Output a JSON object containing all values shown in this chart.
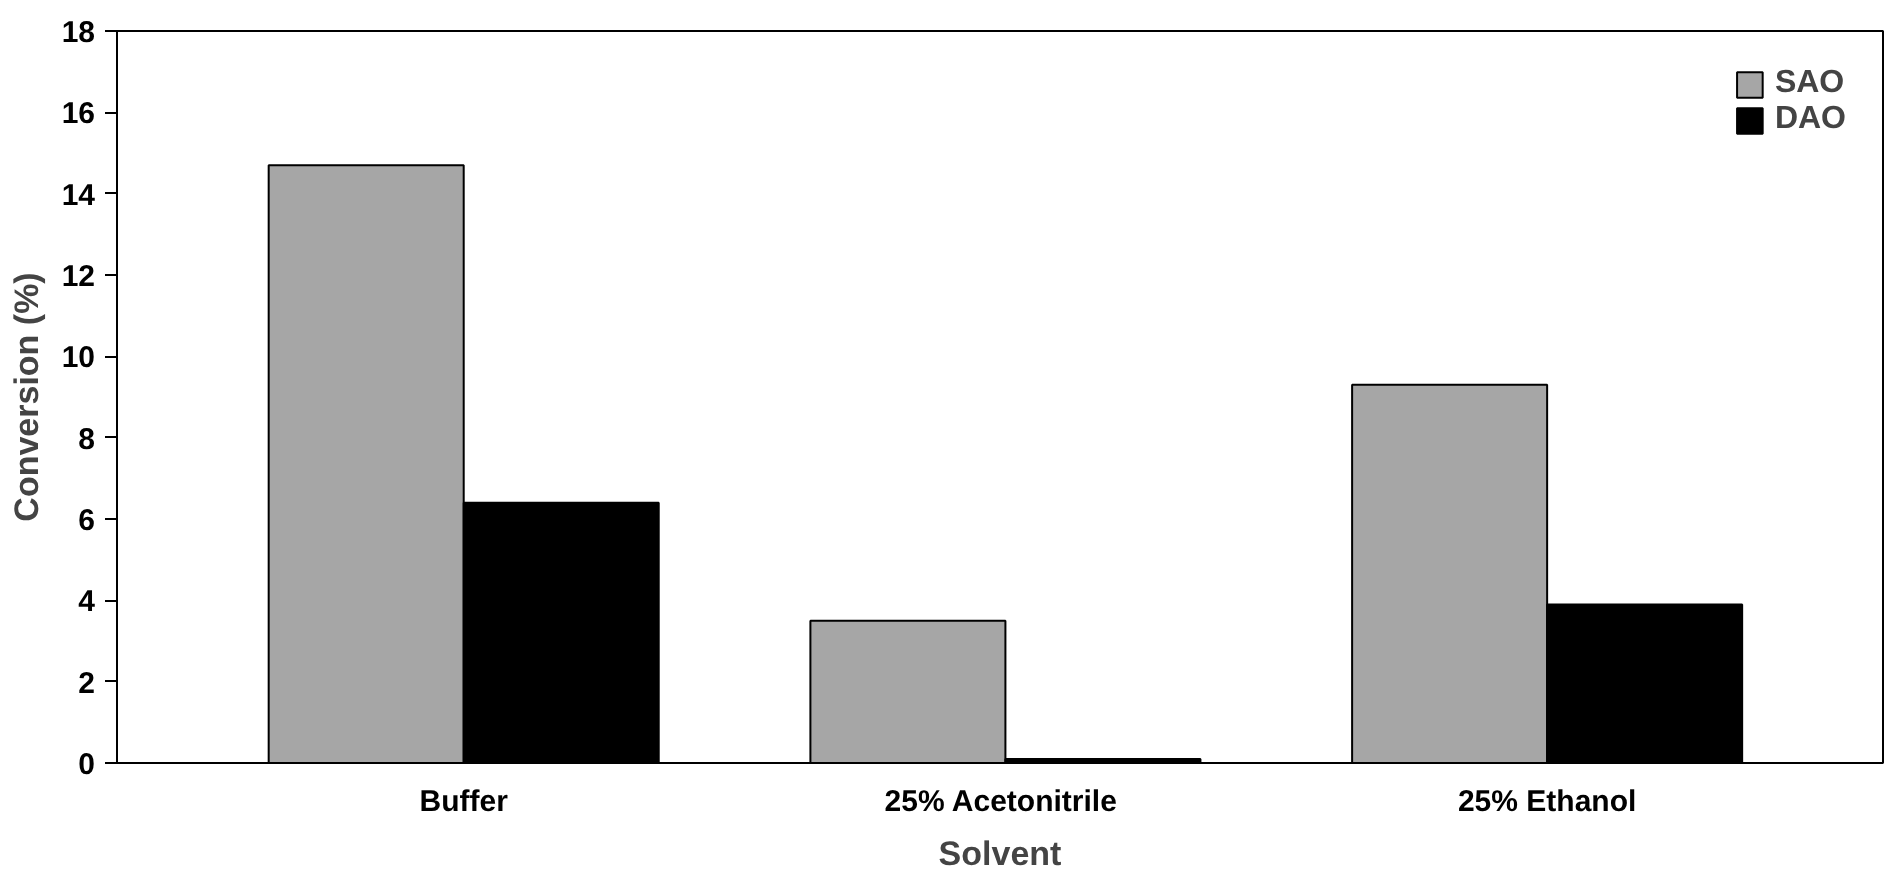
{
  "chart_data": {
    "type": "bar",
    "xlabel": "Solvent",
    "ylabel": "Conversion (%)",
    "categories": [
      "Buffer",
      "25%  Acetonitrile",
      "25% Ethanol"
    ],
    "series": [
      {
        "name": "SAO",
        "color": "#a6a6a6",
        "values": [
          14.7,
          3.5,
          9.3
        ]
      },
      {
        "name": "DAO",
        "color": "#000000",
        "values": [
          6.4,
          0.1,
          3.9
        ]
      }
    ],
    "ylim": [
      0,
      18
    ],
    "yticks": [
      0,
      2,
      4,
      6,
      8,
      10,
      12,
      14,
      16,
      18
    ],
    "grid": false,
    "legend": "top right"
  }
}
